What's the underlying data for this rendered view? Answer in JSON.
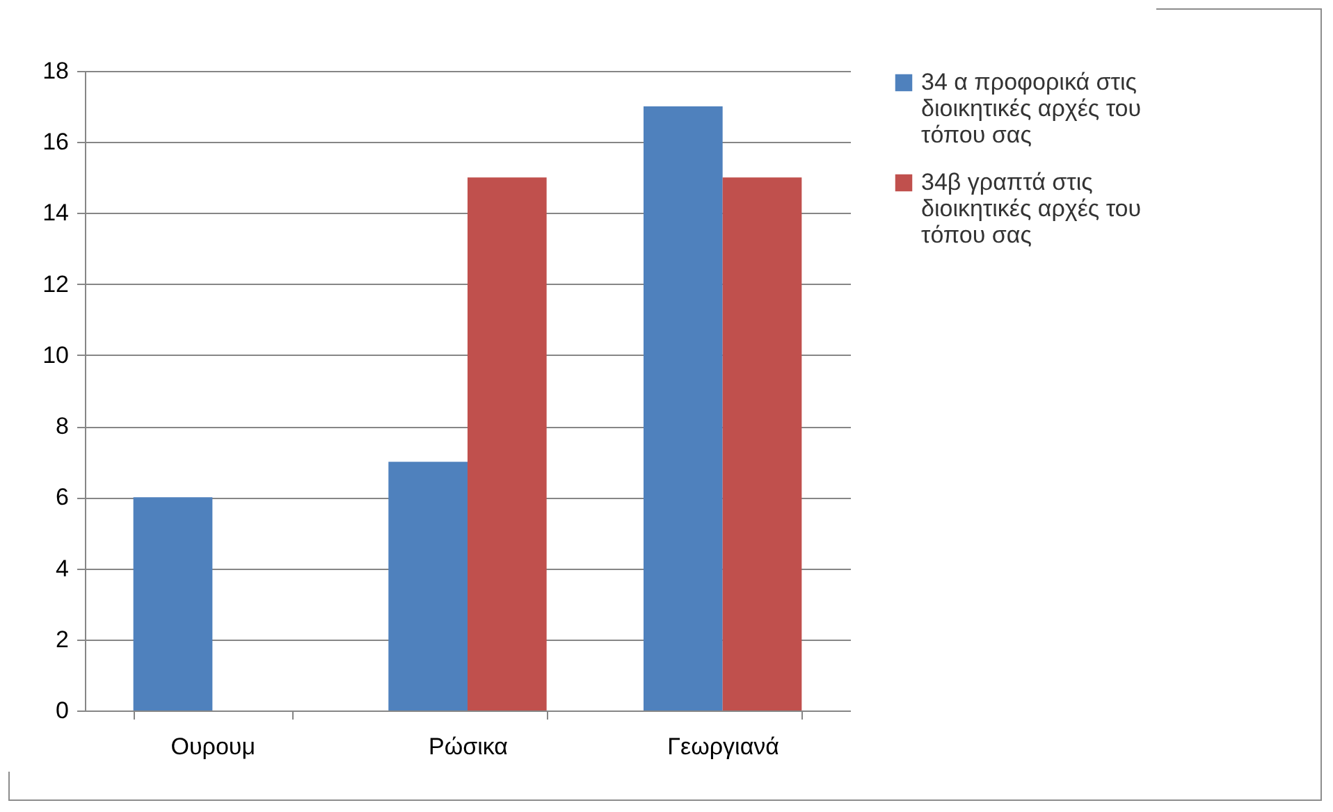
{
  "chart_data": {
    "type": "bar",
    "categories": [
      "Ουρουμ",
      "Ρώσικα",
      "Γεωργιανά"
    ],
    "series": [
      {
        "name": "34 α προφορικά στις διοικητικές αρχές του τόπου σας",
        "color": "#4f81bd",
        "values": [
          6,
          7,
          17
        ]
      },
      {
        "name": "34β γραπτά στις διοικητικές αρχές του τόπου σας",
        "color": "#c0504d",
        "values": [
          null,
          15,
          15
        ]
      }
    ],
    "ylim": [
      0,
      18
    ],
    "yticks": [
      0,
      2,
      4,
      6,
      8,
      10,
      12,
      14,
      16,
      18
    ],
    "grid": "y",
    "legend": "right"
  }
}
